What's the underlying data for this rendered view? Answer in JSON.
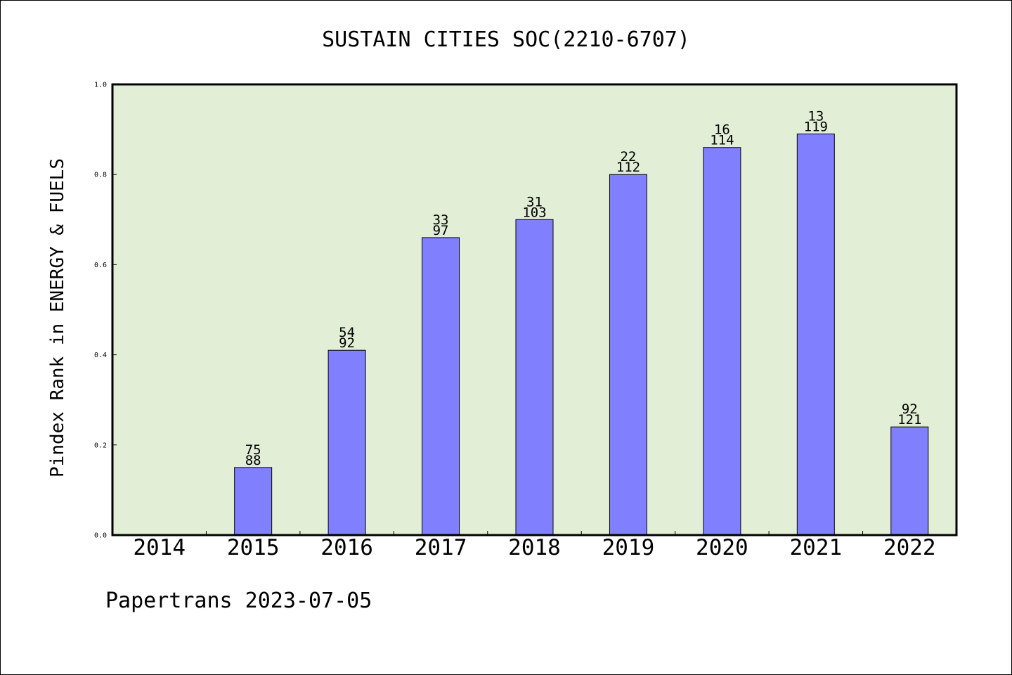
{
  "chart_data": {
    "type": "bar",
    "title": "SUSTAIN CITIES SOC(2210-6707)",
    "ylabel": "Pindex Rank in ENERGY & FUELS",
    "xlabel": "",
    "ylim": [
      0.0,
      1.0
    ],
    "yticks": [
      "0.0",
      "0.2",
      "0.4",
      "0.6",
      "0.8",
      "1.0"
    ],
    "categories": [
      "2014",
      "2015",
      "2016",
      "2017",
      "2018",
      "2019",
      "2020",
      "2021",
      "2022"
    ],
    "values": [
      null,
      0.15,
      0.41,
      0.66,
      0.7,
      0.8,
      0.86,
      0.89,
      0.24
    ],
    "labels_top": [
      "",
      "75",
      "54",
      "33",
      "31",
      "22",
      "16",
      "13",
      "92"
    ],
    "labels_bottom": [
      "",
      "88",
      "92",
      "97",
      "103",
      "112",
      "114",
      "119",
      "121"
    ],
    "grid": false,
    "colors": {
      "bar": "#8080ff",
      "plot_bg": "#e2efd6",
      "axis": "#000000"
    }
  },
  "footer": {
    "text": "Papertrans 2023-07-05"
  }
}
